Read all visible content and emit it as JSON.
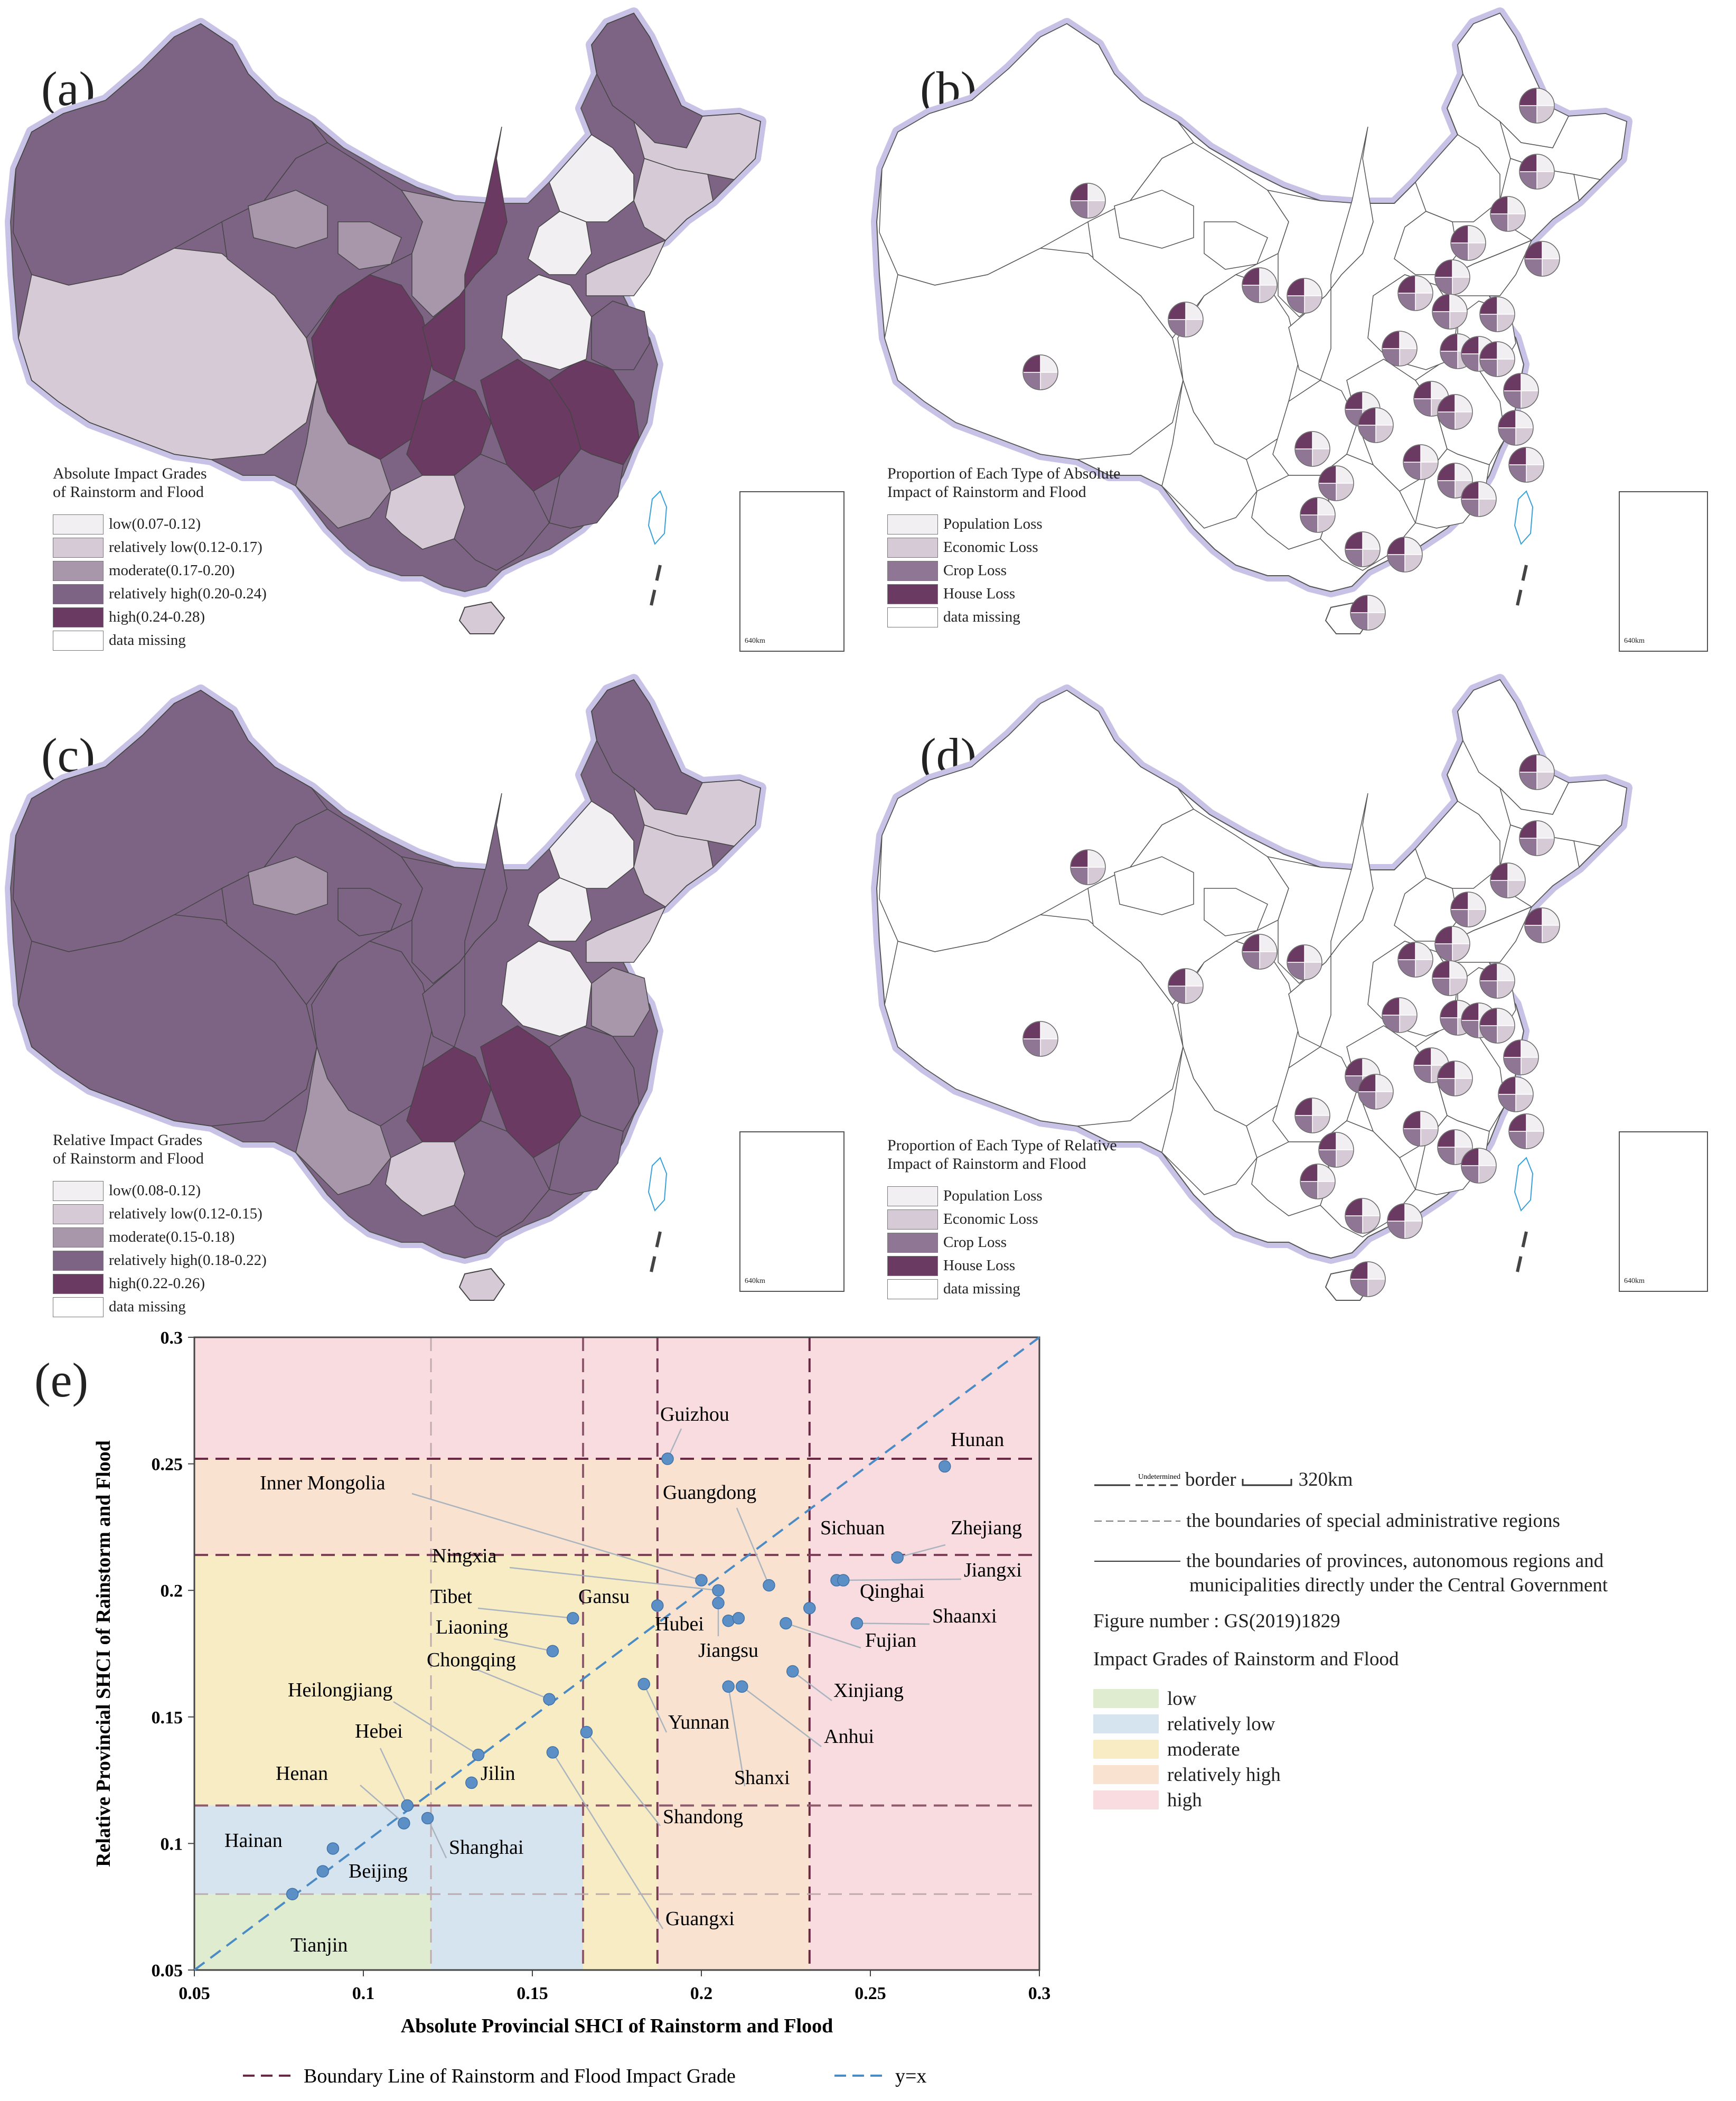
{
  "panels": {
    "a": {
      "label": "(a)",
      "legend": {
        "title_line1": "Absolute Impact Grades",
        "title_line2": "of Rainstorm and Flood",
        "items": [
          {
            "text": "low(0.07-0.12)",
            "color": "#f2eff3"
          },
          {
            "text": "relatively low(0.12-0.17)",
            "color": "#d6cad6"
          },
          {
            "text": "moderate(0.17-0.20)",
            "color": "#a896aa"
          },
          {
            "text": "relatively high(0.20-0.24)",
            "color": "#7e6484"
          },
          {
            "text": "high(0.24-0.28)",
            "color": "#6b3a62"
          },
          {
            "text": "data missing",
            "color": "#ffffff"
          }
        ]
      }
    },
    "b": {
      "label": "(b)",
      "legend": {
        "title_line1": "Proportion of Each Type of Absolute",
        "title_line2": "Impact of Rainstorm and Flood",
        "items": [
          {
            "text": "Population Loss",
            "color": "#f2eff3"
          },
          {
            "text": "Economic Loss",
            "color": "#d6cad6"
          },
          {
            "text": "Crop Loss",
            "color": "#8e7694"
          },
          {
            "text": "House Loss",
            "color": "#6b3a62"
          },
          {
            "text": "data missing",
            "color": "#ffffff"
          }
        ]
      }
    },
    "c": {
      "label": "(c)",
      "legend": {
        "title_line1": "Relative Impact Grades",
        "title_line2": "of Rainstorm and Flood",
        "items": [
          {
            "text": "low(0.08-0.12)",
            "color": "#f2eff3"
          },
          {
            "text": "relatively low(0.12-0.15)",
            "color": "#d6cad6"
          },
          {
            "text": "moderate(0.15-0.18)",
            "color": "#a896aa"
          },
          {
            "text": "relatively high(0.18-0.22)",
            "color": "#7e6484"
          },
          {
            "text": "high(0.22-0.26)",
            "color": "#6b3a62"
          },
          {
            "text": "data missing",
            "color": "#ffffff"
          }
        ]
      }
    },
    "d": {
      "label": "(d)",
      "legend": {
        "title_line1": "Proportion of Each Type of Relative",
        "title_line2": "Impact of Rainstorm and Flood",
        "items": [
          {
            "text": "Population Loss",
            "color": "#f2eff3"
          },
          {
            "text": "Economic Loss",
            "color": "#d6cad6"
          },
          {
            "text": "Crop Loss",
            "color": "#8e7694"
          },
          {
            "text": "House Loss",
            "color": "#6b3a62"
          },
          {
            "text": "data missing",
            "color": "#ffffff"
          }
        ]
      }
    },
    "e": {
      "label": "(e)"
    }
  },
  "inset_scale": "640km",
  "chart_data": {
    "type": "scatter",
    "xlabel": "Absolute Provincial SHCI of Rainstorm and Flood",
    "ylabel": "Relative Provincial SHCI of Rainstorm and Flood",
    "xlim": [
      0.05,
      0.3
    ],
    "ylim": [
      0.05,
      0.3
    ],
    "xticks": [
      "0.05",
      "0.1",
      "0.15",
      "0.2",
      "0.25",
      "0.3"
    ],
    "yticks": [
      "0.05",
      "0.1",
      "0.15",
      "0.2",
      "0.25",
      "0.3"
    ],
    "x_boundaries": [
      0.12,
      0.165,
      0.187,
      0.232
    ],
    "y_boundaries": [
      0.08,
      0.115,
      0.214,
      0.252
    ],
    "band_colors": {
      "low": "#dfeccf",
      "relatively_low": "#d6e4f0",
      "moderate": "#f8ecc4",
      "relatively_high": "#f9e2cf",
      "high": "#f8dcdf"
    },
    "points": [
      {
        "name": "Guizhou",
        "x": 0.19,
        "y": 0.252
      },
      {
        "name": "Hunan",
        "x": 0.272,
        "y": 0.249
      },
      {
        "name": "Zhejiang",
        "x": 0.258,
        "y": 0.213
      },
      {
        "name": "Sichuan",
        "x": 0.24,
        "y": 0.204
      },
      {
        "name": "Jiangxi",
        "x": 0.242,
        "y": 0.204
      },
      {
        "name": "Qinghai",
        "x": 0.232,
        "y": 0.193
      },
      {
        "name": "Shaanxi",
        "x": 0.246,
        "y": 0.187
      },
      {
        "name": "Fujian",
        "x": 0.225,
        "y": 0.187
      },
      {
        "name": "Guangdong",
        "x": 0.22,
        "y": 0.202
      },
      {
        "name": "Inner Mongolia",
        "x": 0.2,
        "y": 0.204
      },
      {
        "name": "Ningxia",
        "x": 0.205,
        "y": 0.2
      },
      {
        "name": "Gansu",
        "x": 0.187,
        "y": 0.194
      },
      {
        "name": "Hubei",
        "x": 0.205,
        "y": 0.195
      },
      {
        "name": "Jiangsu",
        "x": 0.208,
        "y": 0.188
      },
      {
        "name": "Henan_pt",
        "x": 0.211,
        "y": 0.189
      },
      {
        "name": "Xinjiang",
        "x": 0.227,
        "y": 0.168
      },
      {
        "name": "Anhui",
        "x": 0.212,
        "y": 0.162
      },
      {
        "name": "Shanxi",
        "x": 0.208,
        "y": 0.162
      },
      {
        "name": "Yunnan",
        "x": 0.183,
        "y": 0.163
      },
      {
        "name": "Tibet",
        "x": 0.162,
        "y": 0.189
      },
      {
        "name": "Liaoning",
        "x": 0.156,
        "y": 0.176
      },
      {
        "name": "Chongqing",
        "x": 0.155,
        "y": 0.157
      },
      {
        "name": "Shandong",
        "x": 0.166,
        "y": 0.144
      },
      {
        "name": "Guangxi",
        "x": 0.156,
        "y": 0.136
      },
      {
        "name": "Heilongjiang",
        "x": 0.134,
        "y": 0.135
      },
      {
        "name": "Jilin",
        "x": 0.132,
        "y": 0.124
      },
      {
        "name": "Hebei",
        "x": 0.113,
        "y": 0.115
      },
      {
        "name": "Henan",
        "x": 0.112,
        "y": 0.108
      },
      {
        "name": "Shanghai",
        "x": 0.119,
        "y": 0.11
      },
      {
        "name": "Hainan",
        "x": 0.091,
        "y": 0.098
      },
      {
        "name": "Beijing",
        "x": 0.088,
        "y": 0.089
      },
      {
        "name": "Tianjin",
        "x": 0.079,
        "y": 0.08
      }
    ],
    "labels": [
      "Guizhou",
      "Hunan",
      "Inner Mongolia",
      "Guangdong",
      "Sichuan",
      "Zhejiang",
      "Ningxia",
      "Jiangxi",
      "Tibet",
      "Gansu",
      "Qinghai",
      "Liaoning",
      "Hubei",
      "Shaanxi",
      "Fujian",
      "Chongqing",
      "Jiangsu",
      "Heilongjiang",
      "Xinjiang",
      "Yunnan",
      "Hebei",
      "Anhui",
      "Henan",
      "Jilin",
      "Shanxi",
      "Shandong",
      "Hainan",
      "Shanghai",
      "Beijing",
      "Guangxi",
      "Tianjin"
    ],
    "legend": {
      "boundary": "Boundary Line of Rainstorm and Flood Impact Grade",
      "yx": "y=x"
    }
  },
  "right_legend": {
    "undetermined": "Undetermined",
    "border": "border",
    "scale": "320km",
    "sar": "the boundaries of special administrative regions",
    "prov1": "the boundaries of provinces, autonomous regions and",
    "prov2": "municipalities directly under the Central Government",
    "figno": "Figure number : GS(2019)1829",
    "grade_title": "Impact Grades of Rainstorm and Flood",
    "grades": [
      {
        "text": "low",
        "color": "#dfeccf"
      },
      {
        "text": "relatively low",
        "color": "#d6e4f0"
      },
      {
        "text": "moderate",
        "color": "#f8ecc4"
      },
      {
        "text": "relatively high",
        "color": "#f9e2cf"
      },
      {
        "text": "high",
        "color": "#f8dcdf"
      }
    ]
  }
}
